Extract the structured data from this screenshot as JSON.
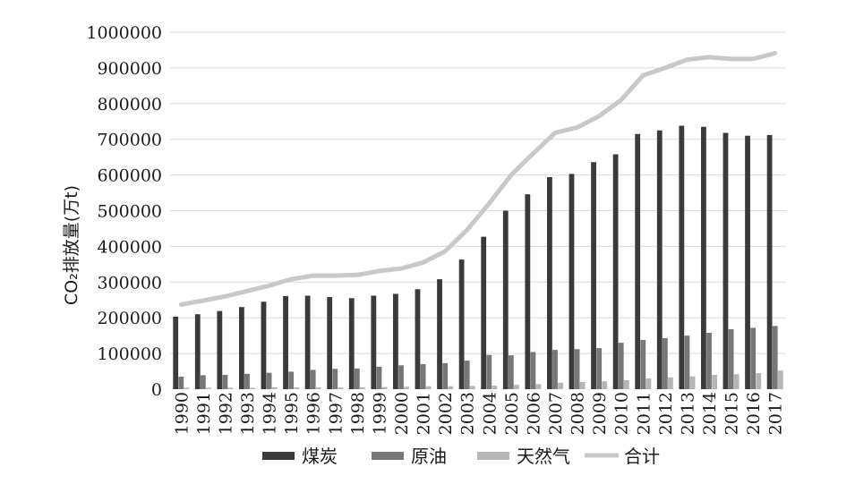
{
  "chart_data": {
    "type": "bar",
    "title": "",
    "xlabel": "",
    "ylabel": "CO₂排放量(万t)",
    "ylim": [
      0,
      1000000
    ],
    "yticks": [
      "0",
      "100000",
      "200000",
      "300000",
      "400000",
      "500000",
      "600000",
      "700000",
      "800000",
      "900000",
      "1000000"
    ],
    "grid": true,
    "legend_position": "bottom",
    "categories": [
      "1990",
      "1991",
      "1992",
      "1993",
      "1994",
      "1995",
      "1996",
      "1997",
      "1998",
      "1999",
      "2000",
      "2001",
      "2002",
      "2003",
      "2004",
      "2005",
      "2006",
      "2007",
      "2008",
      "2009",
      "2010",
      "2011",
      "2012",
      "2013",
      "2014",
      "2015",
      "2016",
      "2017"
    ],
    "series": [
      {
        "name": "煤炭",
        "type": "bar",
        "color": "#3a3a3a",
        "values": [
          203000,
          210000,
          219000,
          230000,
          245000,
          261000,
          262000,
          258000,
          255000,
          262000,
          267000,
          280000,
          308000,
          363000,
          427000,
          500000,
          546000,
          594000,
          603000,
          636000,
          658000,
          715000,
          725000,
          738000,
          735000,
          718000,
          710000,
          712000
        ]
      },
      {
        "name": "原油",
        "type": "bar",
        "color": "#777777",
        "values": [
          35000,
          39000,
          40000,
          43000,
          46000,
          49000,
          54000,
          57000,
          58000,
          63000,
          67000,
          70000,
          73000,
          80000,
          96000,
          95000,
          104000,
          110000,
          112000,
          115000,
          130000,
          138000,
          143000,
          150000,
          158000,
          168000,
          172000,
          177000
        ]
      },
      {
        "name": "天然气",
        "type": "bar",
        "color": "#b5b5b5",
        "values": [
          4000,
          4000,
          4000,
          4000,
          5000,
          5000,
          5000,
          5000,
          5000,
          6000,
          7000,
          8000,
          8000,
          9000,
          10000,
          12000,
          14000,
          18000,
          20000,
          22000,
          25000,
          30000,
          33000,
          36000,
          40000,
          42000,
          45000,
          52000
        ]
      },
      {
        "name": "合计",
        "type": "line",
        "color": "#c8c8c8",
        "values": [
          237000,
          248000,
          260000,
          275000,
          290000,
          308000,
          318000,
          318000,
          320000,
          331000,
          338000,
          355000,
          386000,
          446000,
          520000,
          600000,
          660000,
          718000,
          733000,
          765000,
          810000,
          879000,
          900000,
          923000,
          930000,
          925000,
          925000,
          941000
        ]
      }
    ]
  }
}
